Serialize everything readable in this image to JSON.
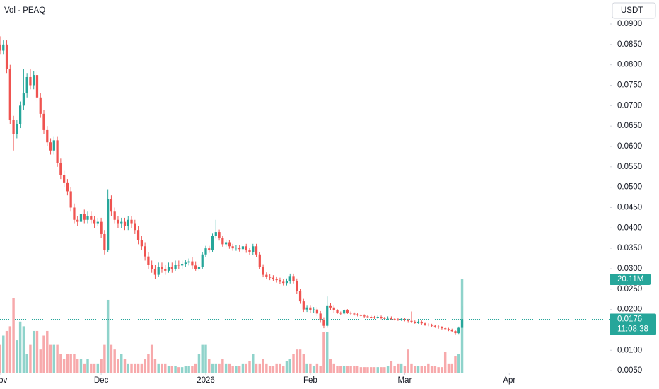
{
  "chart_data": {
    "type": "candlestick",
    "title": "Vol · PEAQ",
    "currency": "USDT",
    "up_color": "#26a69a",
    "down_color": "#ef5350",
    "volume_up_color": "#8fd3cb",
    "volume_down_color": "#f7a9ab",
    "xlim": [
      0,
      180.7
    ],
    "xticks": [
      {
        "value": 0,
        "label": "Nov"
      },
      {
        "value": 30,
        "label": "Dec"
      },
      {
        "value": 61,
        "label": "2026"
      },
      {
        "value": 92,
        "label": "Feb"
      },
      {
        "value": 120,
        "label": "Mar"
      },
      {
        "value": 151,
        "label": "Apr"
      }
    ],
    "ylim": [
      0.0045,
      0.0959
    ],
    "yticks": [
      {
        "value": 0.09,
        "label": "0.0900"
      },
      {
        "value": 0.085,
        "label": "0.0850"
      },
      {
        "value": 0.08,
        "label": "0.0800"
      },
      {
        "value": 0.075,
        "label": "0.0750"
      },
      {
        "value": 0.07,
        "label": "0.0700"
      },
      {
        "value": 0.065,
        "label": "0.0650"
      },
      {
        "value": 0.06,
        "label": "0.0600"
      },
      {
        "value": 0.055,
        "label": "0.0550"
      },
      {
        "value": 0.05,
        "label": "0.0500"
      },
      {
        "value": 0.045,
        "label": "0.0450"
      },
      {
        "value": 0.04,
        "label": "0.0400"
      },
      {
        "value": 0.035,
        "label": "0.0350"
      },
      {
        "value": 0.03,
        "label": "0.0300"
      },
      {
        "value": 0.025,
        "label": "0.0250"
      },
      {
        "value": 0.02,
        "label": "0.0200"
      },
      {
        "value": 0.01,
        "label": "0.0100"
      },
      {
        "value": 0.005,
        "label": "0.0050"
      }
    ],
    "y2lim": [
      0,
      80.3
    ],
    "last_price": {
      "value": 0.0176,
      "label": "0.0176"
    },
    "countdown": "11:08:38",
    "ohlc": [
      [
        0.085,
        0.087,
        0.0825,
        0.0835
      ],
      [
        0.0835,
        0.086,
        0.0825,
        0.085
      ],
      [
        0.085,
        0.086,
        0.078,
        0.079
      ],
      [
        0.079,
        0.08,
        0.0655,
        0.0665
      ],
      [
        0.0665,
        0.0675,
        0.059,
        0.063
      ],
      [
        0.063,
        0.0665,
        0.062,
        0.0655
      ],
      [
        0.0655,
        0.071,
        0.0645,
        0.07
      ],
      [
        0.07,
        0.079,
        0.069,
        0.073
      ],
      [
        0.073,
        0.078,
        0.072,
        0.077
      ],
      [
        0.077,
        0.079,
        0.074,
        0.075
      ],
      [
        0.075,
        0.0785,
        0.074,
        0.0775
      ],
      [
        0.0775,
        0.0785,
        0.071,
        0.072
      ],
      [
        0.072,
        0.073,
        0.067,
        0.068
      ],
      [
        0.068,
        0.069,
        0.063,
        0.064
      ],
      [
        0.064,
        0.065,
        0.06,
        0.061
      ],
      [
        0.061,
        0.062,
        0.058,
        0.059
      ],
      [
        0.059,
        0.0625,
        0.058,
        0.0615
      ],
      [
        0.0615,
        0.0625,
        0.055,
        0.056
      ],
      [
        0.056,
        0.057,
        0.052,
        0.053
      ],
      [
        0.053,
        0.054,
        0.05,
        0.051
      ],
      [
        0.051,
        0.052,
        0.048,
        0.049
      ],
      [
        0.049,
        0.05,
        0.044,
        0.045
      ],
      [
        0.045,
        0.046,
        0.041,
        0.042
      ],
      [
        0.042,
        0.043,
        0.0405,
        0.0415
      ],
      [
        0.0415,
        0.0445,
        0.0405,
        0.0435
      ],
      [
        0.0435,
        0.0445,
        0.041,
        0.042
      ],
      [
        0.042,
        0.044,
        0.041,
        0.043
      ],
      [
        0.043,
        0.044,
        0.041,
        0.042
      ],
      [
        0.042,
        0.043,
        0.04,
        0.041
      ],
      [
        0.041,
        0.0425,
        0.0405,
        0.0415
      ],
      [
        0.0415,
        0.0425,
        0.0375,
        0.0385
      ],
      [
        0.0385,
        0.0395,
        0.0335,
        0.0345
      ],
      [
        0.0345,
        0.0495,
        0.034,
        0.047
      ],
      [
        0.047,
        0.048,
        0.043,
        0.044
      ],
      [
        0.044,
        0.045,
        0.041,
        0.042
      ],
      [
        0.042,
        0.043,
        0.04,
        0.041
      ],
      [
        0.041,
        0.0425,
        0.04,
        0.0415
      ],
      [
        0.0415,
        0.0425,
        0.0395,
        0.0405
      ],
      [
        0.0405,
        0.043,
        0.0395,
        0.042
      ],
      [
        0.042,
        0.043,
        0.04,
        0.041
      ],
      [
        0.041,
        0.042,
        0.0385,
        0.0395
      ],
      [
        0.0395,
        0.0405,
        0.036,
        0.037
      ],
      [
        0.037,
        0.038,
        0.0345,
        0.0355
      ],
      [
        0.0355,
        0.0365,
        0.032,
        0.033
      ],
      [
        0.033,
        0.034,
        0.03,
        0.031
      ],
      [
        0.031,
        0.032,
        0.029,
        0.03
      ],
      [
        0.03,
        0.031,
        0.0275,
        0.0285
      ],
      [
        0.0285,
        0.0315,
        0.028,
        0.0305
      ],
      [
        0.0305,
        0.0315,
        0.029,
        0.03
      ],
      [
        0.03,
        0.031,
        0.0285,
        0.0295
      ],
      [
        0.0295,
        0.0315,
        0.029,
        0.0305
      ],
      [
        0.0305,
        0.0315,
        0.029,
        0.03
      ],
      [
        0.03,
        0.032,
        0.0295,
        0.031
      ],
      [
        0.031,
        0.032,
        0.03,
        0.0308
      ],
      [
        0.0308,
        0.032,
        0.03,
        0.0312
      ],
      [
        0.0312,
        0.0322,
        0.0305,
        0.0315
      ],
      [
        0.0315,
        0.0325,
        0.0308,
        0.0318
      ],
      [
        0.0318,
        0.0328,
        0.03,
        0.0308
      ],
      [
        0.0308,
        0.0318,
        0.0295,
        0.03
      ],
      [
        0.03,
        0.0312,
        0.0295,
        0.0305
      ],
      [
        0.0305,
        0.0341,
        0.03,
        0.0335
      ],
      [
        0.0335,
        0.0356,
        0.0329,
        0.035
      ],
      [
        0.035,
        0.0356,
        0.0339,
        0.0345
      ],
      [
        0.0345,
        0.0386,
        0.034,
        0.038
      ],
      [
        0.038,
        0.042,
        0.0374,
        0.039
      ],
      [
        0.039,
        0.0396,
        0.0369,
        0.0375
      ],
      [
        0.0375,
        0.0381,
        0.0354,
        0.036
      ],
      [
        0.036,
        0.0371,
        0.0354,
        0.0365
      ],
      [
        0.0365,
        0.0371,
        0.0349,
        0.0355
      ],
      [
        0.0355,
        0.0361,
        0.0344,
        0.035
      ],
      [
        0.035,
        0.0358,
        0.0344,
        0.0352
      ],
      [
        0.0352,
        0.0358,
        0.0342,
        0.0348
      ],
      [
        0.0348,
        0.0361,
        0.0342,
        0.0355
      ],
      [
        0.0355,
        0.0361,
        0.0339,
        0.0345
      ],
      [
        0.0345,
        0.0351,
        0.0334,
        0.034
      ],
      [
        0.034,
        0.0361,
        0.0334,
        0.0355
      ],
      [
        0.0355,
        0.0361,
        0.0329,
        0.0335
      ],
      [
        0.0335,
        0.0341,
        0.0299,
        0.0305
      ],
      [
        0.0305,
        0.0311,
        0.0279,
        0.0285
      ],
      [
        0.0285,
        0.0291,
        0.0274,
        0.028
      ],
      [
        0.028,
        0.0286,
        0.0272,
        0.0278
      ],
      [
        0.0278,
        0.0284,
        0.0269,
        0.0275
      ],
      [
        0.0275,
        0.0281,
        0.0266,
        0.0272
      ],
      [
        0.0272,
        0.0278,
        0.0262,
        0.0268
      ],
      [
        0.0268,
        0.0274,
        0.0259,
        0.0265
      ],
      [
        0.0265,
        0.0276,
        0.0259,
        0.027
      ],
      [
        0.027,
        0.0288,
        0.0264,
        0.0282
      ],
      [
        0.0282,
        0.0288,
        0.0264,
        0.027
      ],
      [
        0.027,
        0.0276,
        0.0239,
        0.0245
      ],
      [
        0.0245,
        0.0251,
        0.0214,
        0.022
      ],
      [
        0.022,
        0.0226,
        0.0194,
        0.02
      ],
      [
        0.02,
        0.0211,
        0.0194,
        0.0205
      ],
      [
        0.0205,
        0.0211,
        0.0192,
        0.0198
      ],
      [
        0.0198,
        0.0206,
        0.0192,
        0.02
      ],
      [
        0.02,
        0.0206,
        0.0184,
        0.019
      ],
      [
        0.019,
        0.0196,
        0.0169,
        0.0175
      ],
      [
        0.0175,
        0.0181,
        0.0154,
        0.016
      ],
      [
        0.016,
        0.0232,
        0.0155,
        0.021
      ],
      [
        0.021,
        0.0216,
        0.0199,
        0.0205
      ],
      [
        0.0205,
        0.0211,
        0.0192,
        0.0198
      ],
      [
        0.0198,
        0.0201,
        0.0189,
        0.0192
      ],
      [
        0.0192,
        0.0195,
        0.0187,
        0.019
      ],
      [
        0.019,
        0.0201,
        0.0187,
        0.0198
      ],
      [
        0.0198,
        0.0201,
        0.0189,
        0.0192
      ],
      [
        0.0192,
        0.0195,
        0.0187,
        0.019
      ],
      [
        0.019,
        0.0193,
        0.0185,
        0.0188
      ],
      [
        0.0188,
        0.0191,
        0.0183,
        0.0186
      ],
      [
        0.0186,
        0.0189,
        0.0182,
        0.0185
      ],
      [
        0.0185,
        0.0188,
        0.018,
        0.0183
      ],
      [
        0.0183,
        0.0186,
        0.0179,
        0.0182
      ],
      [
        0.0182,
        0.0185,
        0.0178,
        0.0181
      ],
      [
        0.0181,
        0.0184,
        0.0177,
        0.018
      ],
      [
        0.018,
        0.0185,
        0.0177,
        0.0182
      ],
      [
        0.0182,
        0.0185,
        0.0176,
        0.0179
      ],
      [
        0.0179,
        0.0182,
        0.0175,
        0.0178
      ],
      [
        0.0178,
        0.0183,
        0.0175,
        0.018
      ],
      [
        0.018,
        0.0183,
        0.0174,
        0.0177
      ],
      [
        0.0177,
        0.018,
        0.0173,
        0.0176
      ],
      [
        0.0176,
        0.0179,
        0.0172,
        0.0175
      ],
      [
        0.0175,
        0.018,
        0.0172,
        0.0177
      ],
      [
        0.0177,
        0.018,
        0.0171,
        0.0174
      ],
      [
        0.0174,
        0.0177,
        0.0169,
        0.0172
      ],
      [
        0.0172,
        0.0195,
        0.0167,
        0.017
      ],
      [
        0.017,
        0.0173,
        0.0165,
        0.0168
      ],
      [
        0.0168,
        0.0173,
        0.0165,
        0.017
      ],
      [
        0.017,
        0.0173,
        0.0163,
        0.0166
      ],
      [
        0.0166,
        0.0169,
        0.016,
        0.0163
      ],
      [
        0.0163,
        0.0166,
        0.0159,
        0.0162
      ],
      [
        0.0162,
        0.0165,
        0.0157,
        0.016
      ],
      [
        0.016,
        0.0163,
        0.0155,
        0.0158
      ],
      [
        0.0158,
        0.0161,
        0.0153,
        0.0156
      ],
      [
        0.0156,
        0.0159,
        0.0151,
        0.0154
      ],
      [
        0.0154,
        0.0157,
        0.0149,
        0.0152
      ],
      [
        0.0152,
        0.0155,
        0.0147,
        0.015
      ],
      [
        0.015,
        0.0153,
        0.0144,
        0.0147
      ],
      [
        0.0147,
        0.015,
        0.0139,
        0.0142
      ],
      [
        0.0142,
        0.0158,
        0.014,
        0.0155
      ],
      [
        0.0155,
        0.021,
        0.0152,
        0.0176
      ]
    ],
    "volume": {
      "values": [
        6,
        8,
        9,
        10,
        16,
        7,
        11,
        10,
        4,
        6,
        9,
        9,
        5,
        8,
        9,
        6,
        6,
        6,
        4,
        3,
        4,
        4,
        4,
        3,
        3,
        2,
        3,
        2,
        2,
        2,
        3,
        6,
        15.7,
        6,
        5,
        3,
        4,
        3,
        2,
        2,
        2,
        2,
        2,
        3,
        4,
        6,
        3,
        2,
        2,
        2,
        1.5,
        1.5,
        1.5,
        1.2,
        1.2,
        1.5,
        1.5,
        1.5,
        2,
        4,
        6,
        6,
        3,
        2,
        2,
        2,
        3,
        2,
        2,
        1.5,
        1.5,
        1.5,
        2,
        2,
        2.5,
        4,
        2,
        2,
        3,
        2,
        1.5,
        1.5,
        2,
        2,
        1.5,
        2.5,
        3,
        4,
        5,
        5,
        4,
        2,
        2,
        1.5,
        2,
        1.5,
        8.7,
        8.7,
        3,
        2,
        1.5,
        1.5,
        1.5,
        1.5,
        1.5,
        1.5,
        1.5,
        1.2,
        1.2,
        1.2,
        1.2,
        1.2,
        1.2,
        1.2,
        1.2,
        1.5,
        2.5,
        1.5,
        2,
        2,
        1.5,
        5,
        2,
        1.5,
        1.5,
        1.5,
        1.5,
        2,
        1.5,
        1.5,
        1.2,
        1.2,
        4.5,
        2,
        2,
        3.5,
        4,
        20.11
      ],
      "last_label": "20.11M"
    }
  }
}
